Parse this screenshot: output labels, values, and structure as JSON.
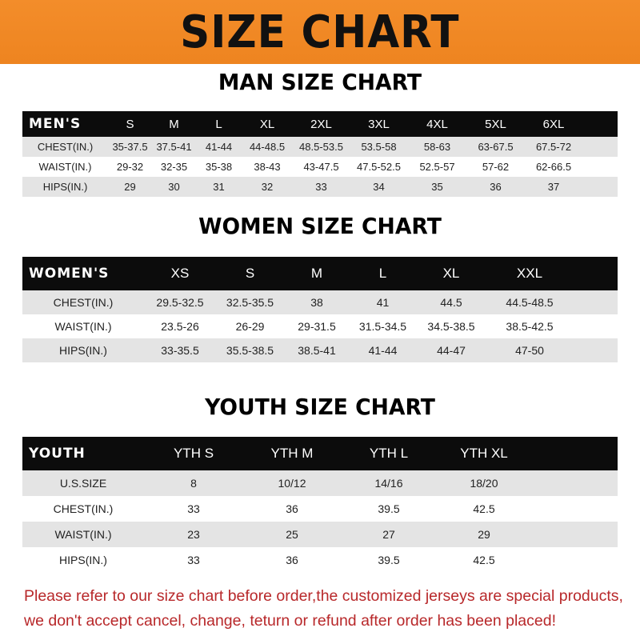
{
  "title": "SIZE CHART",
  "colors": {
    "banner": "#f08a24",
    "header_bar": "#0c0c0c",
    "stripe": "#e4e4e4",
    "note": "#b8282a"
  },
  "men": {
    "title": "MAN SIZE CHART",
    "columns": [
      "MEN'S",
      "S",
      "M",
      "L",
      "XL",
      "2XL",
      "3XL",
      "4XL",
      "5XL",
      "6XL"
    ],
    "rows": [
      [
        "CHEST(IN.)",
        "35-37.5",
        "37.5-41",
        "41-44",
        "44-48.5",
        "48.5-53.5",
        "53.5-58",
        "58-63",
        "63-67.5",
        "67.5-72"
      ],
      [
        "WAIST(IN.)",
        "29-32",
        "32-35",
        "35-38",
        "38-43",
        "43-47.5",
        "47.5-52.5",
        "52.5-57",
        "57-62",
        "62-66.5"
      ],
      [
        "HIPS(IN.)",
        "29",
        "30",
        "31",
        "32",
        "33",
        "34",
        "35",
        "36",
        "37"
      ]
    ]
  },
  "women": {
    "title": "WOMEN SIZE CHART",
    "columns": [
      "WOMEN'S",
      "XS",
      "S",
      "M",
      "L",
      "XL",
      "XXL"
    ],
    "rows": [
      [
        "CHEST(IN.)",
        "29.5-32.5",
        "32.5-35.5",
        "38",
        "41",
        "44.5",
        "44.5-48.5"
      ],
      [
        "WAIST(IN.)",
        "23.5-26",
        "26-29",
        "29-31.5",
        "31.5-34.5",
        "34.5-38.5",
        "38.5-42.5"
      ],
      [
        "HIPS(IN.)",
        "33-35.5",
        "35.5-38.5",
        "38.5-41",
        "41-44",
        "44-47",
        "47-50"
      ]
    ]
  },
  "youth": {
    "title": "YOUTH SIZE CHART",
    "columns": [
      "YOUTH",
      "YTH S",
      "YTH M",
      "YTH L",
      "YTH XL"
    ],
    "rows": [
      [
        "U.S.SIZE",
        "8",
        "10/12",
        "14/16",
        "18/20"
      ],
      [
        "CHEST(IN.)",
        "33",
        "36",
        "39.5",
        "42.5"
      ],
      [
        "WAIST(IN.)",
        "23",
        "25",
        "27",
        "29"
      ],
      [
        "HIPS(IN.)",
        "33",
        "36",
        "39.5",
        "42.5"
      ]
    ]
  },
  "note": {
    "line1": "Please refer to our size chart before order,the customized jerseys are special products,",
    "line2": "we don't accept cancel, change, teturn or refund after order has been placed!"
  }
}
